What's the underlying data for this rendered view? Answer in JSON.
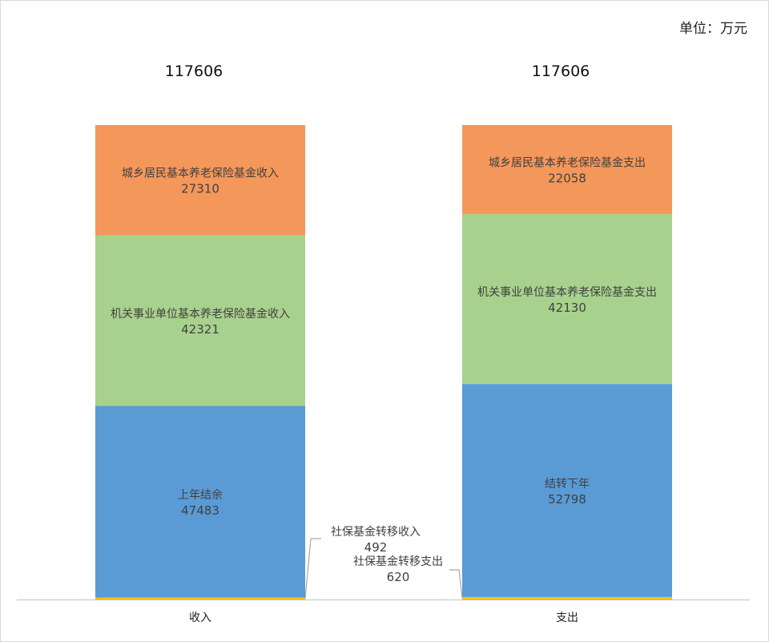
{
  "unit_label": "单位：万元",
  "chart_data": {
    "type": "bar",
    "stacked": true,
    "categories": [
      "收入",
      "支出"
    ],
    "totals": [
      "117606",
      "117606"
    ],
    "ylim": [
      0,
      117606
    ],
    "legend": "none",
    "grid": false,
    "stacks": [
      {
        "category": "收入",
        "segments": [
          {
            "name": "社保基金转移收入",
            "value": 492,
            "color": "#FFC000",
            "label_position": "callout"
          },
          {
            "name": "上年结余",
            "value": 47483,
            "color": "#5B9BD5"
          },
          {
            "name": "机关事业单位基本养老保险基金收入",
            "value": 42321,
            "color": "#A9D18E"
          },
          {
            "name": "城乡居民基本养老保险基金收入",
            "value": 27310,
            "color": "#F4975A"
          }
        ]
      },
      {
        "category": "支出",
        "segments": [
          {
            "name": "社保基金转移支出",
            "value": 620,
            "color": "#FFC000",
            "label_position": "callout"
          },
          {
            "name": "结转下年",
            "value": 52798,
            "color": "#5B9BD5"
          },
          {
            "name": "机关事业单位基本养老保险基金支出",
            "value": 42130,
            "color": "#A9D18E"
          },
          {
            "name": "城乡居民基本养老保险基金支出",
            "value": 22058,
            "color": "#F4975A"
          }
        ]
      }
    ]
  }
}
